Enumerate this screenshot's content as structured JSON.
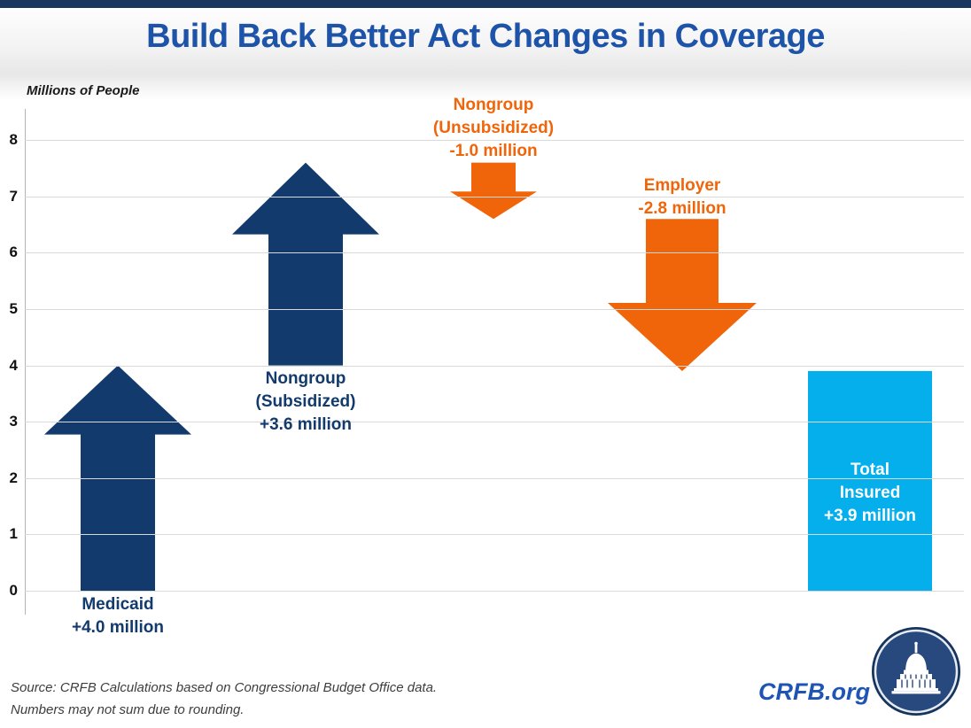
{
  "page": {
    "title": "Build Back Better Act Changes in Coverage"
  },
  "colors": {
    "navy": "#123A6D",
    "orange": "#F1650A",
    "light_blue": "#04AFEC",
    "title_blue": "#1D53A8",
    "brand_blue": "#1E55B4",
    "top_strip": "#18365E",
    "grid": "#D9D9D9"
  },
  "footer": {
    "source_line1": "Source: CRFB Calculations based on Congressional Budget Office data.",
    "source_line2": "Numbers may not sum due to rounding.",
    "brand": "CRFB.org"
  },
  "logo": {
    "name": "crfb-capitol-logo"
  },
  "chart_data": {
    "type": "bar",
    "subtype": "arrow-waterfall",
    "title": "Build Back Better Act Changes in Coverage",
    "ylabel": "Millions of People",
    "xlabel": "",
    "ylim": [
      0,
      8
    ],
    "yticks": [
      0,
      1,
      2,
      3,
      4,
      5,
      6,
      7,
      8
    ],
    "grid": true,
    "legend": "none",
    "categories": [
      "Medicaid",
      "Nongroup (Subsidized)",
      "Nongroup (Unsubsidized)",
      "Employer",
      "Total Insured"
    ],
    "values": [
      4.0,
      3.6,
      -1.0,
      -2.8,
      3.9
    ],
    "elements": [
      {
        "id": "medicaid-up-arrow",
        "category": "Medicaid",
        "change": 4.0,
        "start": 0,
        "end": 4.0,
        "shape": "up-arrow",
        "color": "#123A6D",
        "label": "Medicaid\n+4.0 million",
        "label_color": "#123A6D",
        "label_position": "below"
      },
      {
        "id": "nongroup-subsidized-up-arrow",
        "category": "Nongroup (Subsidized)",
        "change": 3.6,
        "start": 4.0,
        "end": 7.6,
        "shape": "up-arrow",
        "color": "#123A6D",
        "label": "Nongroup\n(Subsidized)\n+3.6 million",
        "label_color": "#123A6D",
        "label_position": "below"
      },
      {
        "id": "nongroup-unsubsidized-down-arrow",
        "category": "Nongroup (Unsubsidized)",
        "change": -1.0,
        "start": 7.6,
        "end": 6.6,
        "shape": "down-arrow",
        "color": "#F1650A",
        "label": "Nongroup\n(Unsubsidized)\n-1.0 million",
        "label_color": "#F1650A",
        "label_position": "above"
      },
      {
        "id": "employer-down-arrow",
        "category": "Employer",
        "change": -2.8,
        "start": 6.6,
        "end": 3.9,
        "shape": "down-arrow",
        "color": "#F1650A",
        "label": "Employer\n-2.8 million",
        "label_color": "#F1650A",
        "label_position": "above"
      },
      {
        "id": "total-insured-bar",
        "category": "Total Insured",
        "change": 3.9,
        "start": 0,
        "end": 3.9,
        "shape": "bar",
        "color": "#04AFEC",
        "label": "Total Insured\n+3.9 million",
        "label_color": "#FFFFFF",
        "label_position": "inside"
      }
    ]
  }
}
